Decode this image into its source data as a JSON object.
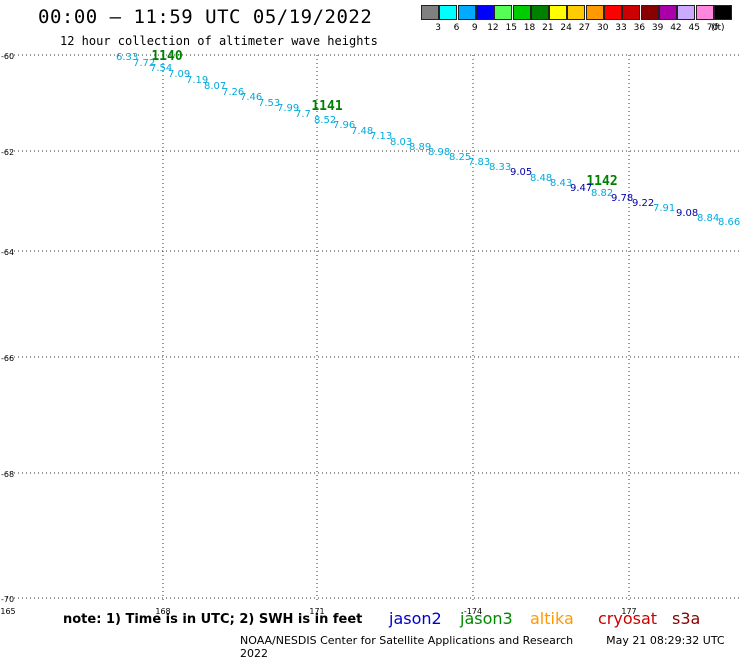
{
  "header": {
    "title": "00:00 – 11:59 UTC 05/19/2022",
    "subtitle": "12 hour collection of altimeter wave heights"
  },
  "scale": {
    "colors": [
      "#808080",
      "#00ffff",
      "#00aaff",
      "#0000ff",
      "#55ff55",
      "#00cc00",
      "#008000",
      "#ffff00",
      "#ffcc00",
      "#ff9900",
      "#ff0000",
      "#cc0000",
      "#880000",
      "#aa00aa",
      "#ccaaff",
      "#ff88dd",
      "#000000"
    ],
    "labels": [
      "3",
      "6",
      "9",
      "12",
      "15",
      "18",
      "21",
      "24",
      "27",
      "30",
      "33",
      "36",
      "39",
      "42",
      "45",
      "70"
    ],
    "unit": "(ft)"
  },
  "map": {
    "lat_labels": [
      "-60",
      "-62",
      "-64",
      "-66",
      "-68",
      "-70"
    ],
    "lon_labels": [
      "165",
      "168",
      "171",
      "-174",
      "177"
    ],
    "passes": [
      {
        "label": "1140",
        "color": "#008000"
      },
      {
        "label": "1141",
        "color": "#008000"
      },
      {
        "label": "1142",
        "color": "#008000"
      }
    ],
    "readings": [
      {
        "value": "6.33",
        "color": "#00aadd"
      },
      {
        "value": "7.72",
        "color": "#00aadd"
      },
      {
        "value": "7.54",
        "color": "#00aadd"
      },
      {
        "value": "7.09",
        "color": "#00aadd"
      },
      {
        "value": "7.19",
        "color": "#00aadd"
      },
      {
        "value": "8.07",
        "color": "#00aadd"
      },
      {
        "value": "7.26",
        "color": "#00aadd"
      },
      {
        "value": "7.46",
        "color": "#00aadd"
      },
      {
        "value": "7.53",
        "color": "#00aadd"
      },
      {
        "value": "7.99",
        "color": "#00aadd"
      },
      {
        "value": "7.7",
        "color": "#00aadd"
      },
      {
        "value": "8.52",
        "color": "#00aadd"
      },
      {
        "value": "7.96",
        "color": "#00aadd"
      },
      {
        "value": "7.48",
        "color": "#00aadd"
      },
      {
        "value": "7.13",
        "color": "#00aadd"
      },
      {
        "value": "8.03",
        "color": "#00aadd"
      },
      {
        "value": "8.89",
        "color": "#00aadd"
      },
      {
        "value": "8.98",
        "color": "#00aadd"
      },
      {
        "value": "8.25",
        "color": "#00aadd"
      },
      {
        "value": "7.83",
        "color": "#00aadd"
      },
      {
        "value": "8.33",
        "color": "#00aadd"
      },
      {
        "value": "9.05",
        "color": "#0000aa"
      },
      {
        "value": "8.48",
        "color": "#00aadd"
      },
      {
        "value": "8.43",
        "color": "#00aadd"
      },
      {
        "value": "9.47",
        "color": "#0000aa"
      },
      {
        "value": "8.82",
        "color": "#00aadd"
      },
      {
        "value": "9.78",
        "color": "#0000aa"
      },
      {
        "value": "9.22",
        "color": "#0000aa"
      },
      {
        "value": "7.91",
        "color": "#00aadd"
      },
      {
        "value": "9.08",
        "color": "#0000aa"
      },
      {
        "value": "8.84",
        "color": "#00aadd"
      },
      {
        "value": "8.66",
        "color": "#00aadd"
      }
    ]
  },
  "footer": {
    "note": "note: 1) Time is in UTC; 2) SWH is in feet",
    "satellites": [
      {
        "name": "jason2",
        "color": "#0000cc"
      },
      {
        "name": "jason3",
        "color": "#008800"
      },
      {
        "name": "altika",
        "color": "#ff9900"
      },
      {
        "name": "cryosat",
        "color": "#cc0000"
      },
      {
        "name": "s3a",
        "color": "#880000"
      }
    ],
    "credit": "NOAA/NESDIS Center for Satellite Applications and Research",
    "timestamp": "May 21 08:29:32 UTC 2022"
  }
}
